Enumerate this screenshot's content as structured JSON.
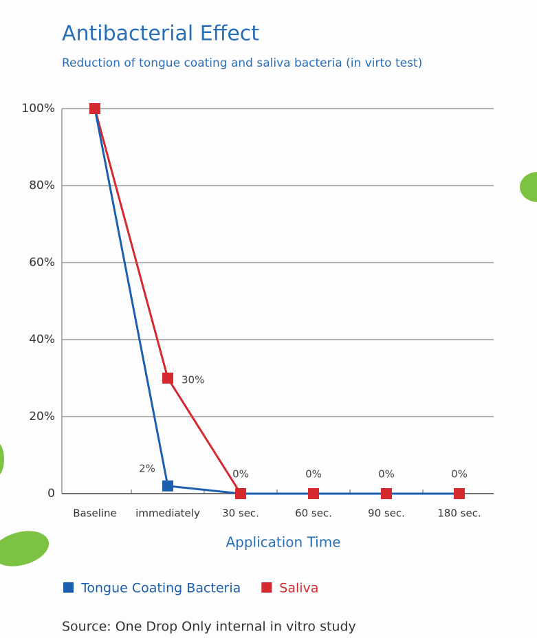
{
  "chart_data": {
    "type": "line",
    "title": "Antibacterial Effect",
    "subtitle": "Reduction of tongue coating and saliva bacteria (in virto test)",
    "x_label": "Application Time",
    "source": "Source: One Drop Only internal in vitro study",
    "categories": [
      "Baseline",
      "immediately",
      "30 sec.",
      "60 sec.",
      "90 sec.",
      "180 sec."
    ],
    "series": [
      {
        "name": "Tongue Coating Bacteria",
        "color": "#1c5fae",
        "values": [
          100,
          2,
          0,
          0,
          0,
          0
        ],
        "value_labels": [
          null,
          "2%",
          "0%",
          "0%",
          "0%",
          "0%"
        ]
      },
      {
        "name": "Saliva",
        "color": "#d42a2f",
        "values": [
          100,
          30,
          0,
          0,
          0,
          0
        ],
        "value_labels": [
          null,
          "30%",
          null,
          null,
          null,
          null
        ]
      }
    ],
    "ylim": [
      0,
      100
    ],
    "yticks": [
      0,
      {
        "value": 20,
        "label": "20%"
      },
      {
        "value": 40,
        "label": "40%"
      },
      {
        "value": 60,
        "label": "60%"
      },
      {
        "value": 80,
        "label": "80%"
      },
      {
        "value": 100,
        "label": "100%"
      }
    ],
    "grid": true
  }
}
